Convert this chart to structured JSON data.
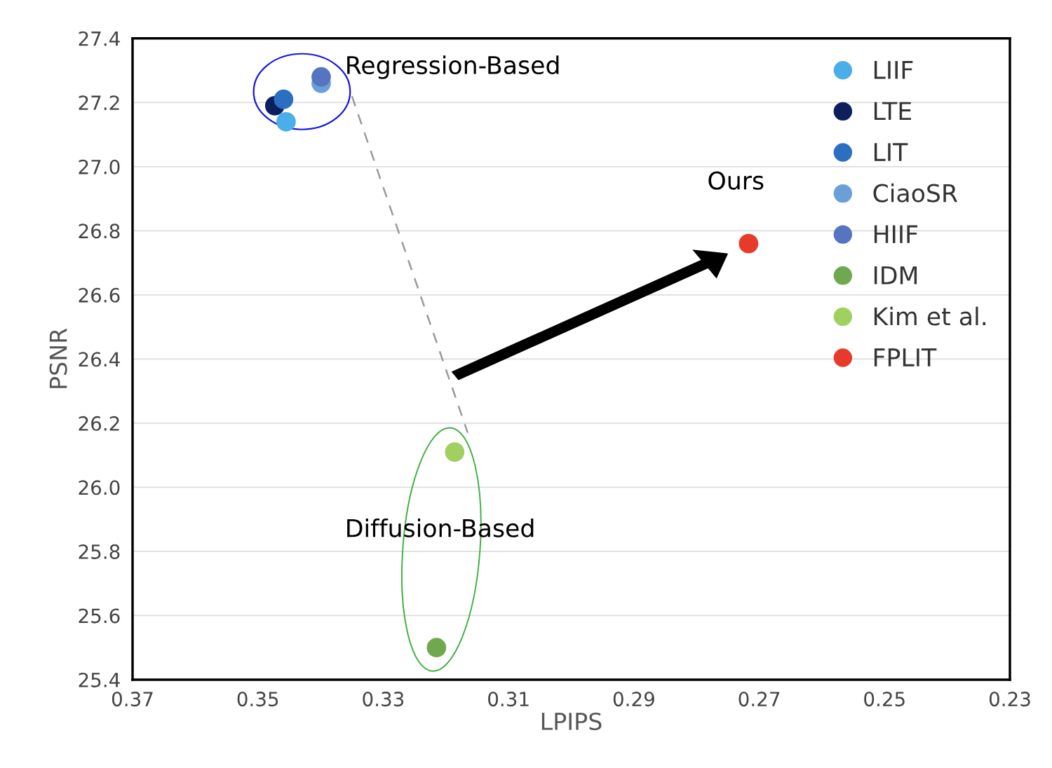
{
  "chart_data": {
    "type": "scatter",
    "xlabel": "LPIPS",
    "ylabel": "PSNR",
    "xlim": [
      0.37,
      0.23
    ],
    "xticks": [
      0.37,
      0.35,
      0.33,
      0.31,
      0.29,
      0.27,
      0.25,
      0.23
    ],
    "ylim": [
      25.4,
      27.4
    ],
    "yticks": [
      {
        "value": 25.4,
        "label": "25.4"
      },
      {
        "value": 25.6,
        "label": "25.6"
      },
      {
        "value": 25.8,
        "label": "25.8"
      },
      {
        "value": 26.0,
        "label": "26.0"
      },
      {
        "value": 26.2,
        "label": "26.2"
      },
      {
        "value": 26.4,
        "label": "26.4"
      },
      {
        "value": 26.6,
        "label": "26.6"
      },
      {
        "value": 26.8,
        "label": "26.8"
      },
      {
        "value": 27.0,
        "label": "27.0"
      },
      {
        "value": 27.2,
        "label": "27.2"
      },
      {
        "value": 27.4,
        "label": "27.4"
      }
    ],
    "grid": "y",
    "legend": "top right",
    "marker": "circle",
    "series": [
      {
        "name": "LIIF",
        "color": "#4aaee8",
        "x": [
          0.3455
        ],
        "values": [
          27.14
        ]
      },
      {
        "name": "LTE",
        "color": "#0d1f5c",
        "x": [
          0.3473
        ],
        "values": [
          27.19
        ]
      },
      {
        "name": "LIT",
        "color": "#2a6fc0",
        "x": [
          0.3459
        ],
        "values": [
          27.21
        ]
      },
      {
        "name": "CiaoSR",
        "color": "#6a9fd8",
        "x": [
          0.3399
        ],
        "values": [
          27.26
        ]
      },
      {
        "name": "HIIF",
        "color": "#5575c0",
        "x": [
          0.3399
        ],
        "values": [
          27.28
        ]
      },
      {
        "name": "IDM",
        "color": "#70a850",
        "x": [
          0.3215
        ],
        "values": [
          25.5
        ]
      },
      {
        "name": "Kim et al.",
        "color": "#a0d060",
        "x": [
          0.3186
        ],
        "values": [
          26.11
        ]
      },
      {
        "name": "FPLIT",
        "color": "#e83a2a",
        "x": [
          0.2717
        ],
        "values": [
          26.76
        ]
      }
    ],
    "annotations": [
      "Regression-Based",
      "Ours",
      "Diffusion-Based"
    ]
  }
}
